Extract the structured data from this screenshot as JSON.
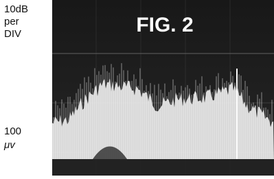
{
  "scale_label": [
    "10dB",
    "per",
    "DIV"
  ],
  "figure_title": "FIG. 2",
  "reference_label": [
    "100",
    "μv"
  ]
}
